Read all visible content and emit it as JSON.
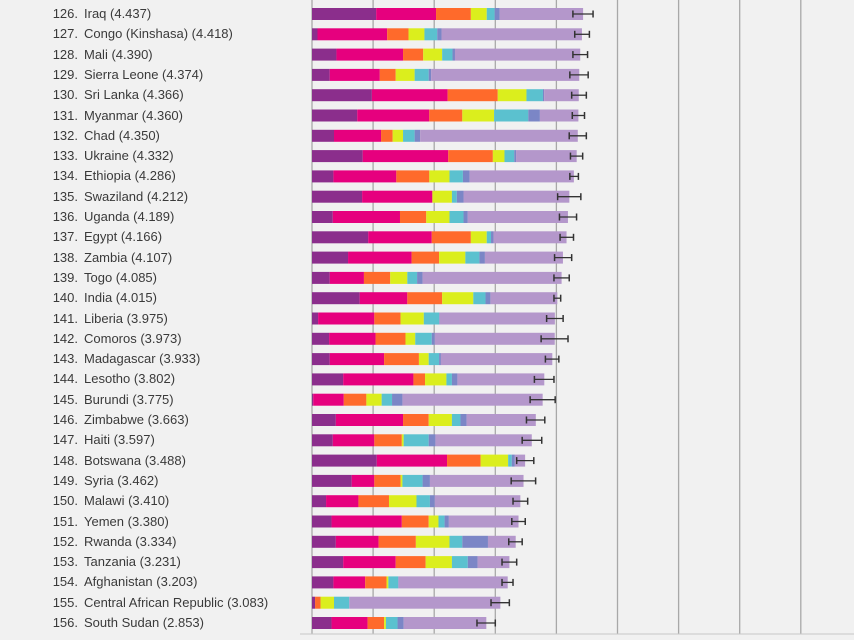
{
  "chart_data": {
    "type": "bar",
    "orientation": "horizontal",
    "stacked": true,
    "xlim": [
      0,
      9
    ],
    "grid": true,
    "legend": "none",
    "segment_colors": [
      "#8b2e8c",
      "#e6007e",
      "#ff6a2b",
      "#dbee1d",
      "#5bc1cf",
      "#7b86c6",
      "#b497cb"
    ],
    "error_bar_color": "#333333",
    "rows": [
      {
        "rank": "126.",
        "country": "Iraq (4.437)",
        "score": 4.437,
        "segments": [
          1.05,
          0.98,
          0.57,
          0.26,
          0.13,
          0.08,
          1.367
        ],
        "ci": [
          4.27,
          4.6
        ]
      },
      {
        "rank": "127.",
        "country": "Congo (Kinshasa) (4.418)",
        "score": 4.418,
        "segments": [
          0.09,
          1.14,
          0.35,
          0.26,
          0.21,
          0.07,
          2.298
        ],
        "ci": [
          4.3,
          4.54
        ]
      },
      {
        "rank": "128.",
        "country": "Mali (4.390)",
        "score": 4.39,
        "segments": [
          0.4,
          1.09,
          0.33,
          0.31,
          0.17,
          0.04,
          2.05
        ],
        "ci": [
          4.27,
          4.51
        ]
      },
      {
        "rank": "129.",
        "country": "Sierra Leone (4.374)",
        "score": 4.374,
        "segments": [
          0.29,
          0.82,
          0.26,
          0.31,
          0.23,
          0.04,
          2.424
        ],
        "ci": [
          4.22,
          4.52
        ]
      },
      {
        "rank": "130.",
        "country": "Sri Lanka (4.366)",
        "score": 4.366,
        "segments": [
          0.98,
          1.24,
          0.82,
          0.47,
          0.27,
          0.02,
          0.566
        ],
        "ci": [
          4.25,
          4.49
        ]
      },
      {
        "rank": "131.",
        "country": "Myanmar (4.360)",
        "score": 4.36,
        "segments": [
          0.74,
          1.18,
          0.54,
          0.52,
          0.56,
          0.19,
          0.63
        ],
        "ci": [
          4.26,
          4.46
        ]
      },
      {
        "rank": "132.",
        "country": "Chad (4.350)",
        "score": 4.35,
        "segments": [
          0.36,
          0.77,
          0.19,
          0.17,
          0.19,
          0.09,
          2.58
        ],
        "ci": [
          4.21,
          4.49
        ]
      },
      {
        "rank": "133.",
        "country": "Ukraine (4.332)",
        "score": 4.332,
        "segments": [
          0.83,
          1.4,
          0.73,
          0.19,
          0.16,
          0.03,
          0.992
        ],
        "ci": [
          4.23,
          4.43
        ]
      },
      {
        "rank": "134.",
        "country": "Ethiopia (4.286)",
        "score": 4.286,
        "segments": [
          0.35,
          1.03,
          0.54,
          0.33,
          0.22,
          0.11,
          1.706
        ],
        "ci": [
          4.22,
          4.36
        ]
      },
      {
        "rank": "135.",
        "country": "Swaziland (4.212)",
        "score": 4.212,
        "segments": [
          0.82,
          1.15,
          0.0,
          0.32,
          0.08,
          0.11,
          1.732
        ],
        "ci": [
          4.02,
          4.4
        ]
      },
      {
        "rank": "136.",
        "country": "Uganda (4.189)",
        "score": 4.189,
        "segments": [
          0.34,
          1.1,
          0.43,
          0.38,
          0.23,
          0.07,
          1.639
        ],
        "ci": [
          4.05,
          4.33
        ]
      },
      {
        "rank": "137.",
        "country": "Egypt (4.166)",
        "score": 4.166,
        "segments": [
          0.92,
          1.04,
          0.64,
          0.26,
          0.07,
          0.04,
          1.196
        ],
        "ci": [
          4.06,
          4.28
        ]
      },
      {
        "rank": "138.",
        "country": "Zambia (4.107)",
        "score": 4.107,
        "segments": [
          0.59,
          1.04,
          0.45,
          0.43,
          0.23,
          0.09,
          1.277
        ],
        "ci": [
          3.97,
          4.25
        ]
      },
      {
        "rank": "139.",
        "country": "Togo (4.085)",
        "score": 4.085,
        "segments": [
          0.29,
          0.56,
          0.43,
          0.28,
          0.16,
          0.09,
          2.275
        ],
        "ci": [
          3.96,
          4.21
        ]
      },
      {
        "rank": "140.",
        "country": "India (4.015)",
        "score": 4.015,
        "segments": [
          0.78,
          0.78,
          0.57,
          0.51,
          0.2,
          0.08,
          1.095
        ],
        "ci": [
          3.96,
          4.07
        ]
      },
      {
        "rank": "141.",
        "country": "Liberia (3.975)",
        "score": 3.975,
        "segments": [
          0.1,
          0.92,
          0.43,
          0.38,
          0.25,
          0.01,
          1.885
        ],
        "ci": [
          3.84,
          4.11
        ]
      },
      {
        "rank": "142.",
        "country": "Comoros (3.973)",
        "score": 3.973,
        "segments": [
          0.28,
          0.76,
          0.49,
          0.16,
          0.27,
          0.05,
          1.963
        ],
        "ci": [
          3.75,
          4.19
        ]
      },
      {
        "rank": "143.",
        "country": "Madagascar (3.933)",
        "score": 3.933,
        "segments": [
          0.29,
          0.89,
          0.57,
          0.16,
          0.17,
          0.03,
          1.823
        ],
        "ci": [
          3.82,
          4.04
        ]
      },
      {
        "rank": "144.",
        "country": "Lesotho (3.802)",
        "score": 3.802,
        "segments": [
          0.51,
          1.15,
          0.19,
          0.35,
          0.09,
          0.09,
          1.422
        ],
        "ci": [
          3.64,
          3.96
        ]
      },
      {
        "rank": "145.",
        "country": "Burundi (3.775)",
        "score": 3.775,
        "segments": [
          0.02,
          0.5,
          0.37,
          0.25,
          0.17,
          0.17,
          2.295
        ],
        "ci": [
          3.57,
          3.98
        ]
      },
      {
        "rank": "146.",
        "country": "Zimbabwe (3.663)",
        "score": 3.663,
        "segments": [
          0.39,
          1.1,
          0.42,
          0.38,
          0.14,
          0.1,
          1.133
        ],
        "ci": [
          3.51,
          3.81
        ]
      },
      {
        "rank": "147.",
        "country": "Haiti (3.597)",
        "score": 3.597,
        "segments": [
          0.34,
          0.68,
          0.45,
          0.03,
          0.41,
          0.11,
          1.577
        ],
        "ci": [
          3.44,
          3.76
        ]
      },
      {
        "rank": "148.",
        "country": "Botswana (3.488)",
        "score": 3.488,
        "segments": [
          1.06,
          1.15,
          0.55,
          0.45,
          0.06,
          0.05,
          0.168
        ],
        "ci": [
          3.35,
          3.63
        ]
      },
      {
        "rank": "149.",
        "country": "Syria (3.462)",
        "score": 3.462,
        "segments": [
          0.65,
          0.37,
          0.43,
          0.03,
          0.33,
          0.12,
          1.532
        ],
        "ci": [
          3.26,
          3.66
        ]
      },
      {
        "rank": "150.",
        "country": "Malawi (3.410)",
        "score": 3.41,
        "segments": [
          0.23,
          0.53,
          0.5,
          0.45,
          0.22,
          0.08,
          1.4
        ],
        "ci": [
          3.29,
          3.53
        ]
      },
      {
        "rank": "151.",
        "country": "Yemen (3.380)",
        "score": 3.38,
        "segments": [
          0.32,
          1.15,
          0.44,
          0.16,
          0.1,
          0.07,
          1.14
        ],
        "ci": [
          3.27,
          3.49
        ]
      },
      {
        "rank": "152.",
        "country": "Rwanda (3.334)",
        "score": 3.334,
        "segments": [
          0.39,
          0.7,
          0.61,
          0.55,
          0.21,
          0.42,
          0.454
        ],
        "ci": [
          3.22,
          3.44
        ]
      },
      {
        "rank": "153.",
        "country": "Tanzania (3.231)",
        "score": 3.231,
        "segments": [
          0.51,
          0.86,
          0.49,
          0.43,
          0.26,
          0.16,
          0.521
        ],
        "ci": [
          3.11,
          3.35
        ]
      },
      {
        "rank": "154.",
        "country": "Afghanistan (3.203)",
        "score": 3.203,
        "segments": [
          0.35,
          0.52,
          0.35,
          0.03,
          0.16,
          0.01,
          1.783
        ],
        "ci": [
          3.11,
          3.29
        ]
      },
      {
        "rank": "155.",
        "country": "Central African Republic (3.083)",
        "score": 3.083,
        "segments": [
          0.05,
          0.0,
          0.09,
          0.22,
          0.25,
          0.0,
          2.473
        ],
        "ci": [
          2.93,
          3.23
        ]
      },
      {
        "rank": "156.",
        "country": "South Sudan (2.853)",
        "score": 2.853,
        "segments": [
          0.32,
          0.59,
          0.27,
          0.03,
          0.19,
          0.1,
          1.353
        ],
        "ci": [
          2.7,
          3.0
        ]
      }
    ]
  }
}
